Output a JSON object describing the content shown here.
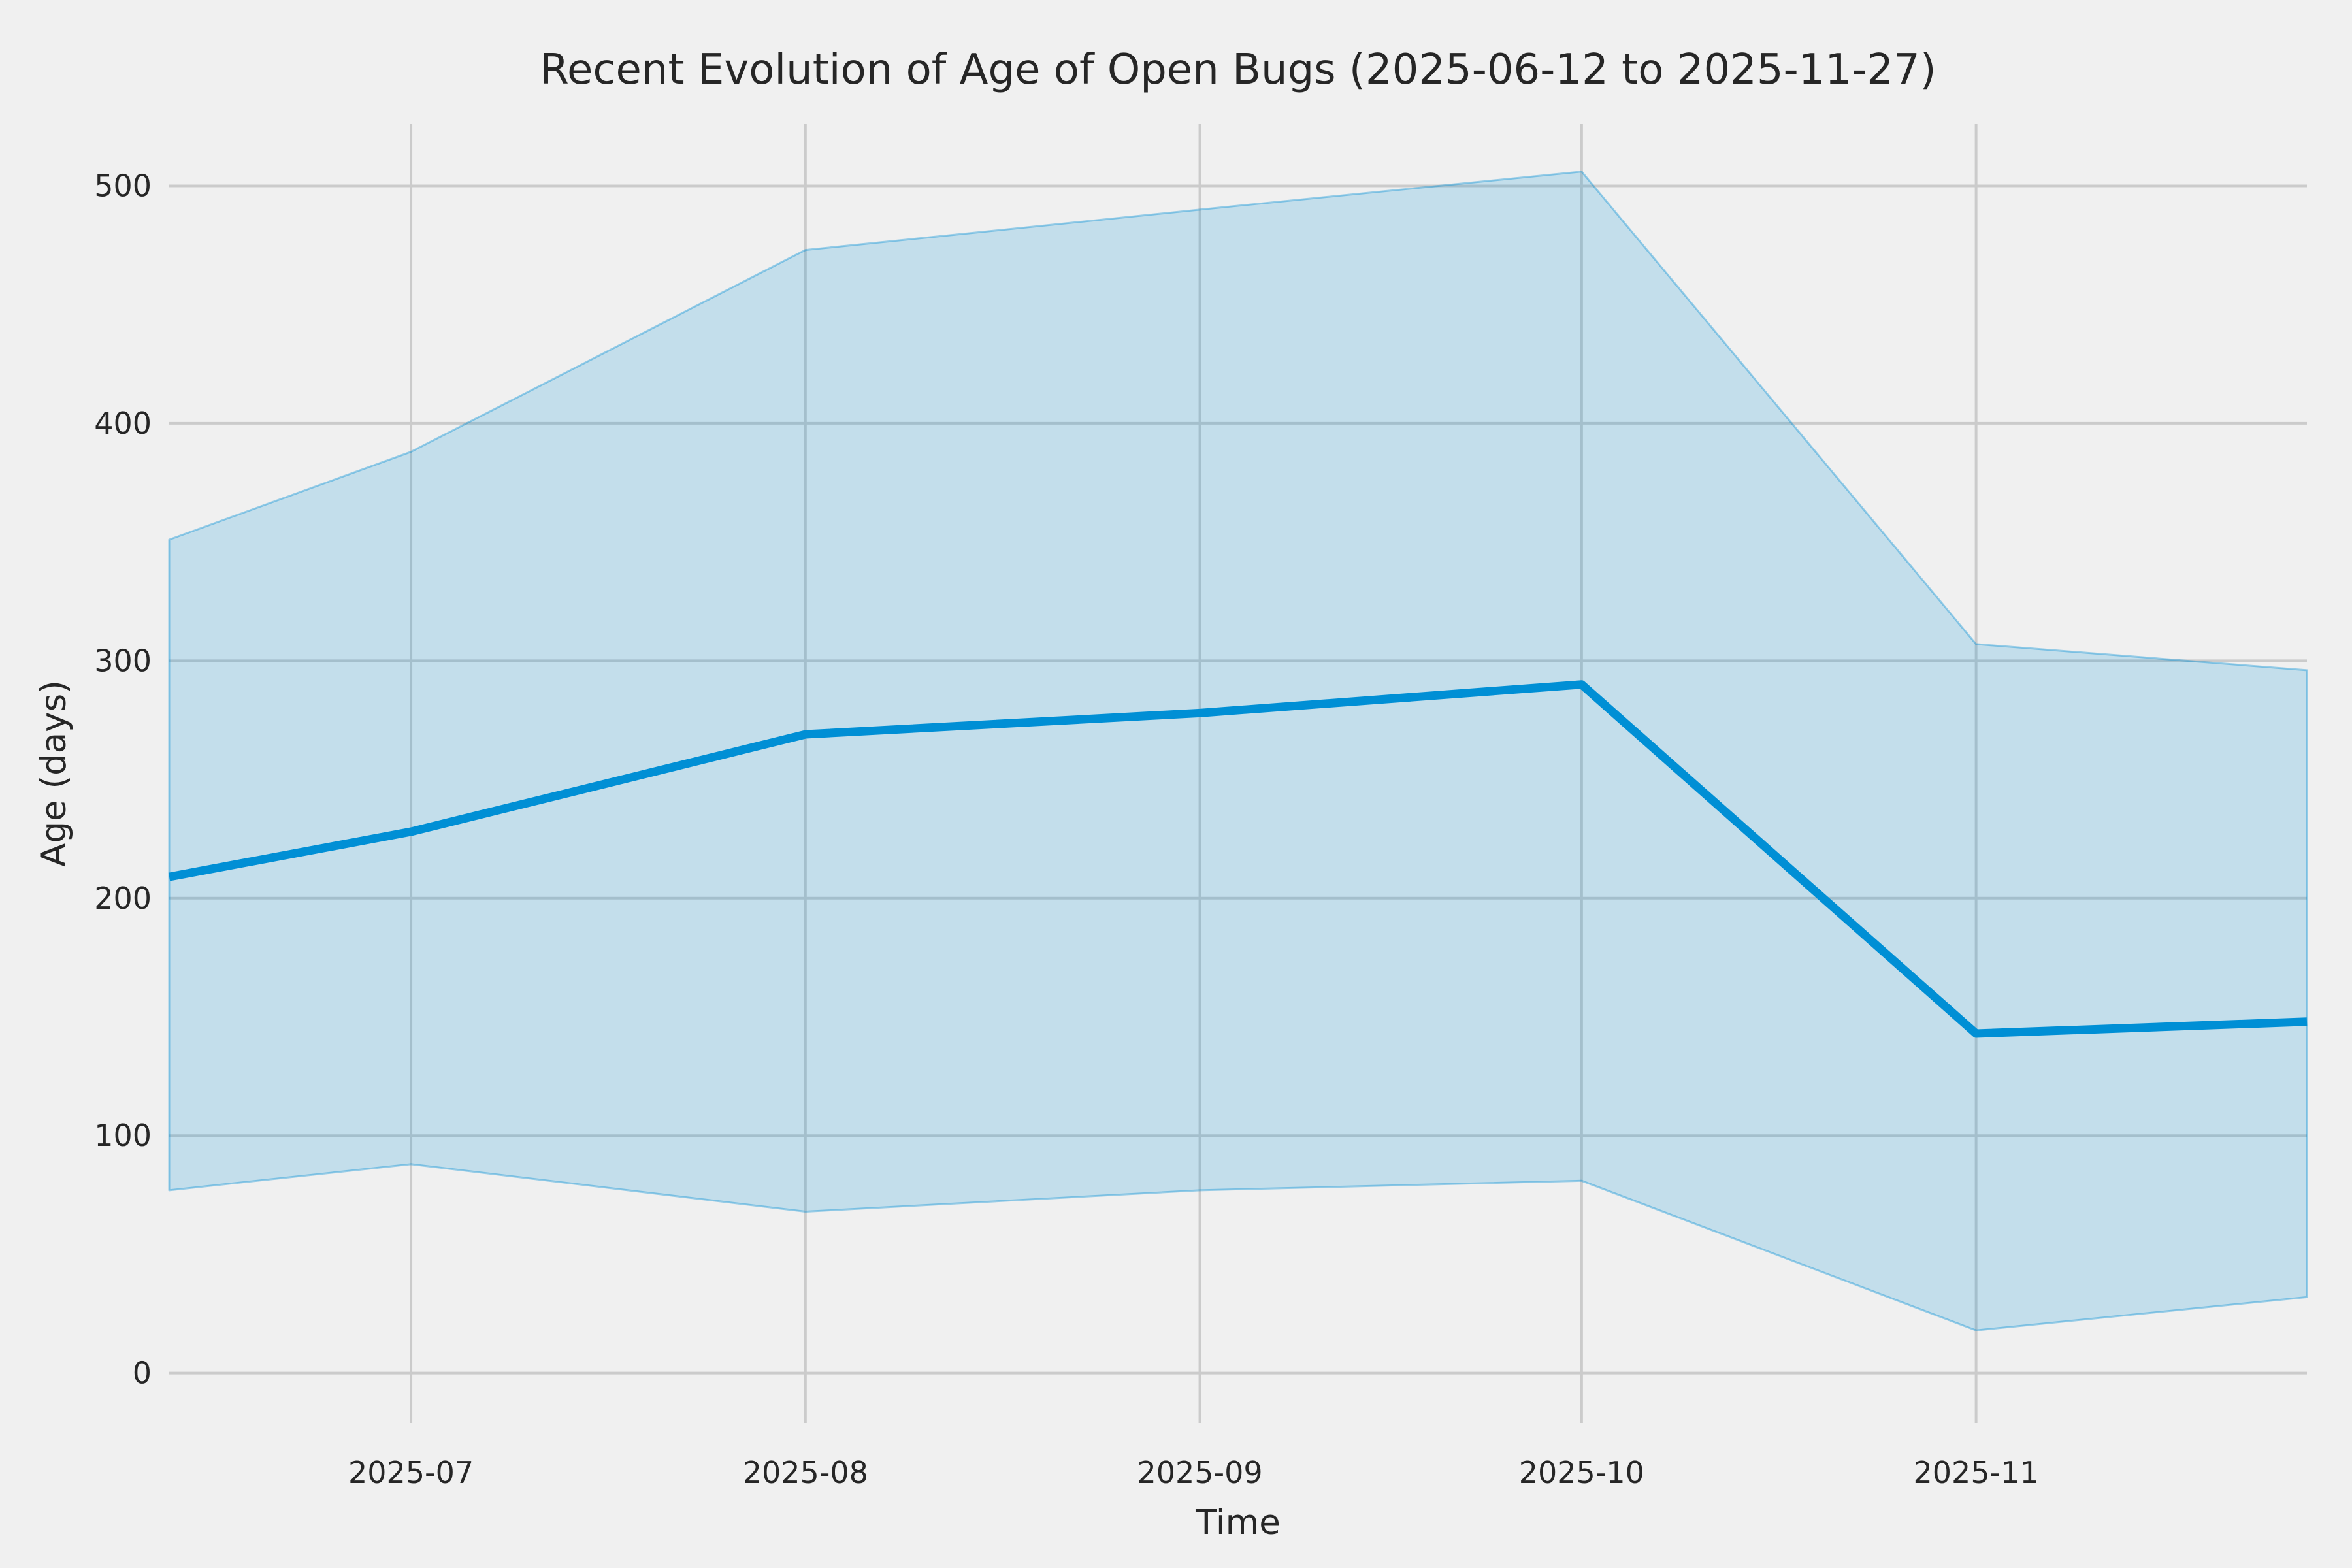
{
  "figure": {
    "title": "Recent Evolution of Age of Open Bugs (2025-06-12 to 2025-11-27)",
    "background_color": "#f0f0f0",
    "grid_color": "#cbcbcb",
    "text_color": "#262626",
    "line_color": "#008fd5",
    "band_fill_color": "rgba(0,143,213,0.19)",
    "band_edge_color": "rgba(0,143,213,0.38)"
  },
  "chart_data": {
    "type": "line",
    "title": "Recent Evolution of Age of Open Bugs (2025-06-12 to 2025-11-27)",
    "xlabel": "Time",
    "ylabel": "Age (days)",
    "x_dates": [
      "2025-06-12",
      "2025-07-01",
      "2025-08-01",
      "2025-09-01",
      "2025-10-01",
      "2025-11-01",
      "2025-11-27"
    ],
    "x_day_offsets": [
      0,
      19,
      50,
      81,
      111,
      142,
      168
    ],
    "series": [
      {
        "name": "mean-age",
        "role": "line",
        "values": [
          209,
          228,
          269,
          278,
          290,
          143,
          148
        ]
      },
      {
        "name": "band-upper-max",
        "role": "band-upper",
        "values": [
          351,
          388,
          473,
          490,
          506,
          307,
          296
        ]
      },
      {
        "name": "band-lower-min",
        "role": "band-lower",
        "values": [
          77,
          88,
          68,
          77,
          81,
          18,
          32
        ]
      }
    ],
    "x_tick_labels": [
      "2025-07",
      "2025-08",
      "2025-09",
      "2025-10",
      "2025-11"
    ],
    "x_tick_day_offsets": [
      19,
      50,
      81,
      111,
      142
    ],
    "y_tick_labels": [
      "0",
      "100",
      "200",
      "300",
      "400",
      "500"
    ],
    "y_ticks": [
      0,
      100,
      200,
      300,
      400,
      500
    ],
    "ylim": [
      -21,
      526
    ],
    "xlim_days": [
      0,
      168
    ],
    "grid": true,
    "legend_position": "none"
  }
}
